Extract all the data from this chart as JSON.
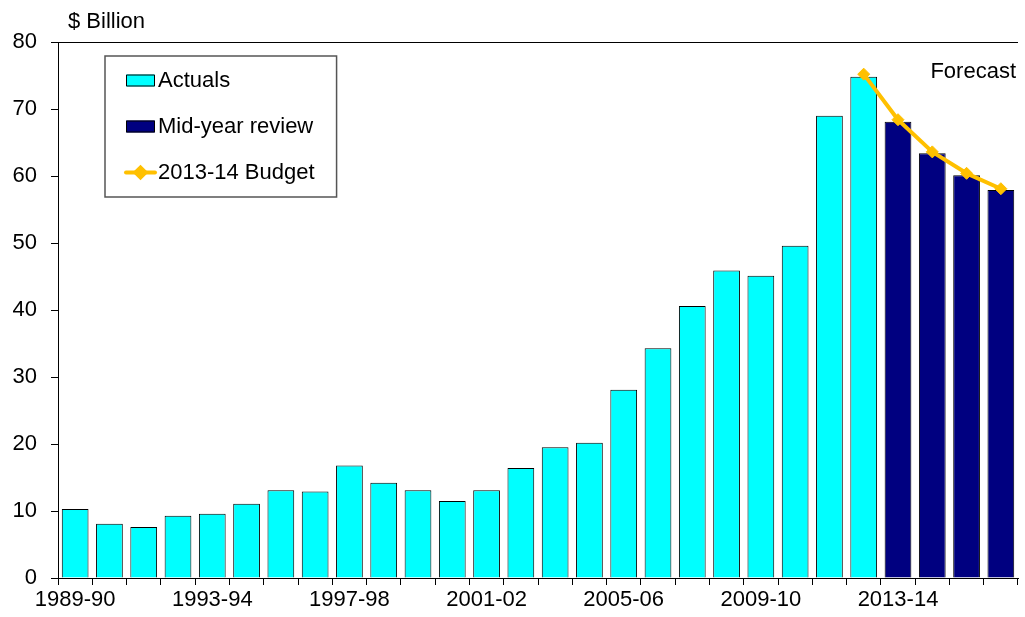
{
  "chart_data": {
    "type": "bar",
    "ylabel": "$ Billion",
    "categories": [
      "1989-90",
      null,
      null,
      null,
      "1993-94",
      null,
      null,
      null,
      "1997-98",
      null,
      null,
      null,
      "2001-02",
      null,
      null,
      null,
      "2005-06",
      null,
      null,
      null,
      "2009-10",
      null,
      null,
      null,
      "2013-14",
      null,
      null,
      null
    ],
    "series": [
      {
        "name": "Actuals",
        "color": "#00ffff",
        "values": [
          10.3,
          8.1,
          7.6,
          9.3,
          9.6,
          11.1,
          13.1,
          12.9,
          16.8,
          14.2,
          13.1,
          11.5,
          13.1,
          16.4,
          19.5,
          20.2,
          28.1,
          34.3,
          40.6,
          45.9,
          45.1,
          49.6,
          69.0,
          74.8,
          null,
          null,
          null,
          null
        ]
      },
      {
        "name": "Mid-year review",
        "color": "#000080",
        "values": [
          null,
          null,
          null,
          null,
          null,
          null,
          null,
          null,
          null,
          null,
          null,
          null,
          null,
          null,
          null,
          null,
          null,
          null,
          null,
          null,
          null,
          null,
          null,
          null,
          68.1,
          63.4,
          60.1,
          57.9
        ]
      },
      {
        "name": "2013-14 Budget",
        "type": "line",
        "color": "#ffc000",
        "values": [
          null,
          null,
          null,
          null,
          null,
          null,
          null,
          null,
          null,
          null,
          null,
          null,
          null,
          null,
          null,
          null,
          null,
          null,
          null,
          null,
          null,
          null,
          null,
          75.2,
          68.4,
          63.6,
          60.4,
          58.1
        ]
      }
    ],
    "ylim": [
      0,
      80
    ],
    "yticks": [
      0,
      10,
      20,
      30,
      40,
      50,
      60,
      70,
      80
    ],
    "legend": "top left",
    "marker": "diamond",
    "annotations": [
      "Forecast"
    ]
  }
}
